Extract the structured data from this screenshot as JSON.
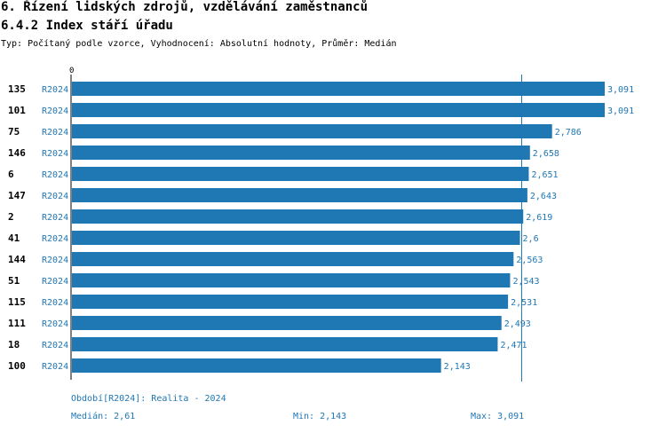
{
  "header": {
    "title": "6. Řízení lidských zdrojů, vzdělávání zaměstnanců",
    "subtitle": "6.4.2 Index stáří úřadu",
    "meta": "Typ: Počítaný podle vzorce, Vyhodnocení: Absolutní hodnoty, Průměr: Medián"
  },
  "chart_data": {
    "type": "bar",
    "orientation": "horizontal",
    "x_axis_start_label": "0",
    "xlim": [
      0,
      3.091
    ],
    "median_line": 2.61,
    "categories": [
      "135",
      "101",
      "75",
      "146",
      "6",
      "147",
      "2",
      "41",
      "144",
      "51",
      "115",
      "111",
      "18",
      "100"
    ],
    "series": [
      {
        "name": "R2024",
        "values": [
          3.091,
          3.091,
          2.786,
          2.658,
          2.651,
          2.643,
          2.619,
          2.6,
          2.563,
          2.543,
          2.531,
          2.493,
          2.471,
          2.143
        ],
        "value_labels": [
          "3,091",
          "3,091",
          "2,786",
          "2,658",
          "2,651",
          "2,643",
          "2,619",
          "2,6",
          "2,563",
          "2,543",
          "2,531",
          "2,493",
          "2,471",
          "2,143"
        ]
      }
    ],
    "colors": {
      "bar": "#1f77b4",
      "label": "#1f77b4",
      "axis": "#000000",
      "median": "#1f77b4"
    }
  },
  "footer": {
    "period": "Období[R2024]: Realita - 2024",
    "median": "Medián: 2,61",
    "min": "Min: 2,143",
    "max": "Max: 3,091"
  }
}
